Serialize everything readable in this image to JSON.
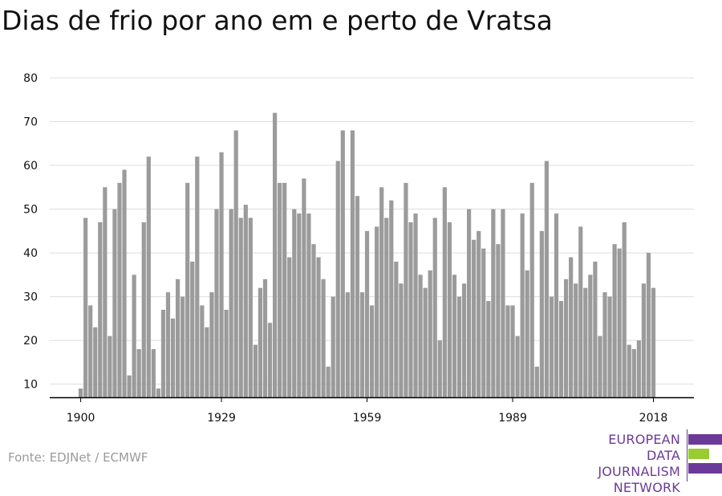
{
  "title": "Dias de frio por ano em e perto de Vratsa",
  "source": "Fonte: EDJNet / ECMWF",
  "logo": {
    "line1": "EUROPEAN",
    "line2": "DATA JOURNALISM",
    "line3": "NETWORK",
    "colors": {
      "text": "#6b3a99",
      "accent": "#99cc33"
    }
  },
  "colors": {
    "bar": "#9b9b9b",
    "grid": "#dddddd",
    "axis": "#000000"
  },
  "chart_data": {
    "type": "bar",
    "title": "Dias de frio por ano em e perto de Vratsa",
    "xlabel": "",
    "ylabel": "",
    "ylim": [
      7,
      80
    ],
    "yticks": [
      10,
      20,
      30,
      40,
      50,
      60,
      70,
      80
    ],
    "xticks": [
      1900,
      1929,
      1959,
      1989,
      2018
    ],
    "grid": true,
    "x": [
      1900,
      1901,
      1902,
      1903,
      1904,
      1905,
      1906,
      1907,
      1908,
      1909,
      1910,
      1911,
      1912,
      1913,
      1914,
      1915,
      1916,
      1917,
      1918,
      1919,
      1920,
      1921,
      1922,
      1923,
      1924,
      1925,
      1926,
      1927,
      1928,
      1929,
      1930,
      1931,
      1932,
      1933,
      1934,
      1935,
      1936,
      1937,
      1938,
      1939,
      1940,
      1941,
      1942,
      1943,
      1944,
      1945,
      1946,
      1947,
      1948,
      1949,
      1950,
      1951,
      1952,
      1953,
      1954,
      1955,
      1956,
      1957,
      1958,
      1959,
      1960,
      1961,
      1962,
      1963,
      1964,
      1965,
      1966,
      1967,
      1968,
      1969,
      1970,
      1971,
      1972,
      1973,
      1974,
      1975,
      1976,
      1977,
      1978,
      1979,
      1980,
      1981,
      1982,
      1983,
      1984,
      1985,
      1986,
      1987,
      1988,
      1989,
      1990,
      1991,
      1992,
      1993,
      1994,
      1995,
      1996,
      1997,
      1998,
      1999,
      2000,
      2001,
      2002,
      2003,
      2004,
      2005,
      2006,
      2007,
      2008,
      2009,
      2010,
      2011,
      2012,
      2013,
      2014,
      2015,
      2016,
      2017,
      2018
    ],
    "values": [
      9,
      48,
      28,
      23,
      47,
      55,
      21,
      50,
      56,
      59,
      12,
      35,
      18,
      47,
      62,
      18,
      9,
      27,
      31,
      25,
      34,
      30,
      56,
      38,
      62,
      28,
      23,
      31,
      50,
      63,
      27,
      50,
      68,
      48,
      51,
      48,
      19,
      32,
      34,
      24,
      72,
      56,
      56,
      39,
      50,
      49,
      57,
      49,
      42,
      39,
      34,
      14,
      30,
      61,
      68,
      31,
      68,
      53,
      31,
      45,
      28,
      46,
      55,
      48,
      52,
      38,
      33,
      56,
      47,
      49,
      35,
      32,
      36,
      48,
      20,
      55,
      47,
      35,
      30,
      33,
      50,
      43,
      45,
      41,
      29,
      50,
      42,
      50,
      28,
      28,
      21,
      49,
      36,
      56,
      14,
      45,
      61,
      30,
      49,
      29,
      34,
      39,
      33,
      46,
      32,
      35,
      38,
      21,
      31,
      30,
      42,
      41,
      47,
      19,
      18,
      20,
      33,
      40,
      32
    ]
  }
}
